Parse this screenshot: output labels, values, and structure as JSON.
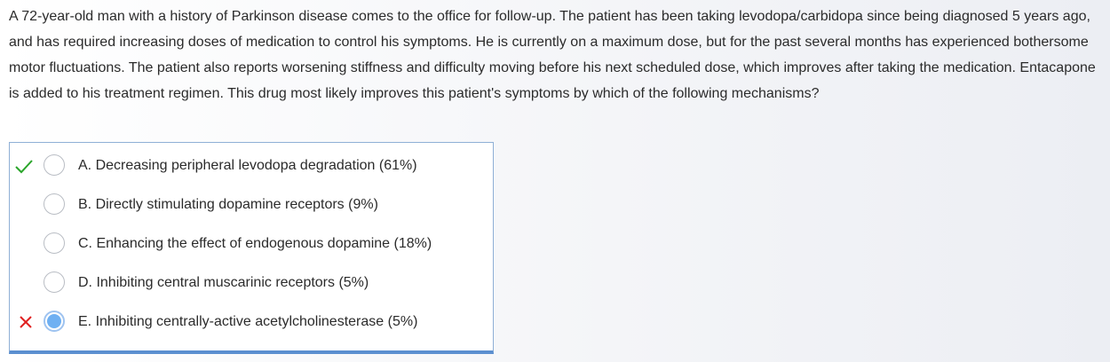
{
  "question": {
    "stem": "A 72-year-old man with a history of Parkinson disease comes to the office for follow-up.  The patient has been taking levodopa/carbidopa since being diagnosed 5 years ago, and has required increasing doses of medication to control his symptoms.  He is currently on a maximum dose, but for the past several months has experienced bothersome motor fluctuations.  The patient also reports worsening stiffness and difficulty moving before his next scheduled dose, which improves after taking the medication.  Entacapone is added to his treatment regimen.  This drug most likely improves this patient's symptoms by which of the following mechanisms?"
  },
  "choices": [
    {
      "text": "A.  Decreasing peripheral levodopa degradation (61%)",
      "status": "correct",
      "selected": false
    },
    {
      "text": "B.  Directly stimulating dopamine receptors (9%)",
      "status": "none",
      "selected": false
    },
    {
      "text": "C.  Enhancing the effect of endogenous dopamine (18%)",
      "status": "none",
      "selected": false
    },
    {
      "text": "D.  Inhibiting central muscarinic receptors (5%)",
      "status": "none",
      "selected": false
    },
    {
      "text": "E.  Inhibiting centrally-active acetylcholinesterase (5%)",
      "status": "incorrect",
      "selected": true
    }
  ],
  "colors": {
    "correct_check": "#2aa52a",
    "incorrect_x": "#e02020",
    "selected_radio": "#6fb0f2",
    "box_border": "#8fb0d6"
  },
  "icons": {
    "correct": "check-icon",
    "incorrect": "x-icon"
  }
}
